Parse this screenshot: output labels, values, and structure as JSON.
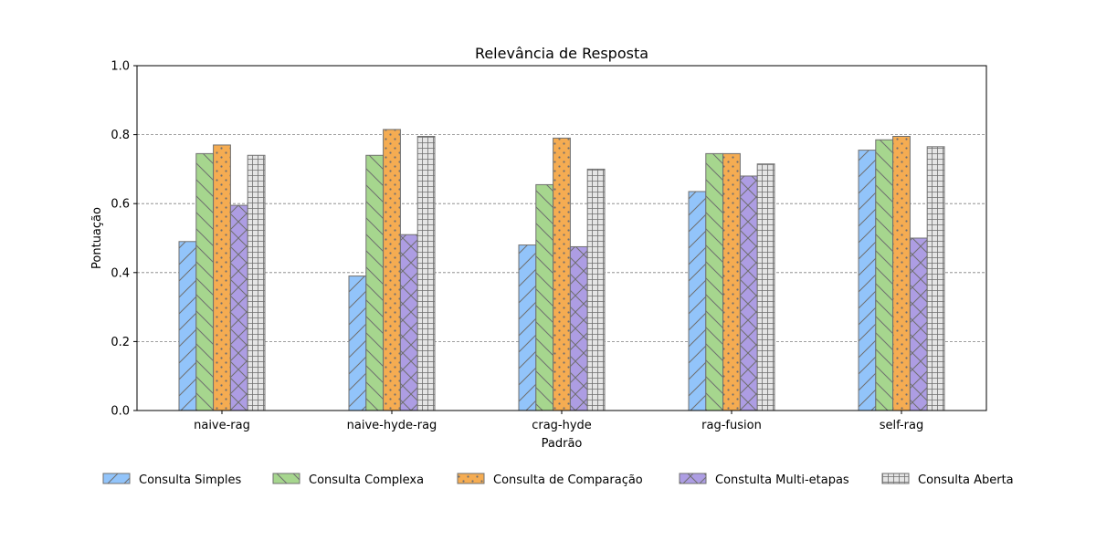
{
  "chart_data": {
    "type": "bar",
    "title": "Relevância de Resposta",
    "xlabel": "Padrão",
    "ylabel": "Pontuação",
    "ylim": [
      0,
      1.0
    ],
    "yticks": [
      "0.0",
      "0.2",
      "0.4",
      "0.6",
      "0.8",
      "1.0"
    ],
    "grid": "horizontal dashed",
    "legend_position": "bottom",
    "categories": [
      "naive-rag",
      "naive-hyde-rag",
      "crag-hyde",
      "rag-fusion",
      "self-rag"
    ],
    "series": [
      {
        "name": "Consulta Simples",
        "color": "#92c4fa",
        "pattern": "diagonal",
        "values": [
          0.49,
          0.39,
          0.48,
          0.635,
          0.755
        ]
      },
      {
        "name": "Consulta Complexa",
        "color": "#a6d68e",
        "pattern": "backdiagonal",
        "values": [
          0.745,
          0.74,
          0.655,
          0.745,
          0.785
        ]
      },
      {
        "name": "Consulta de Comparação",
        "color": "#f5ac52",
        "pattern": "dots",
        "values": [
          0.77,
          0.815,
          0.79,
          0.745,
          0.795
        ]
      },
      {
        "name": "Constulta Multi-etapas",
        "color": "#ad9de3",
        "pattern": "crosshatch",
        "values": [
          0.595,
          0.51,
          0.475,
          0.68,
          0.5
        ]
      },
      {
        "name": "Consulta Aberta",
        "color": "#e5e5e5",
        "pattern": "grid",
        "values": [
          0.74,
          0.795,
          0.7,
          0.715,
          0.765
        ]
      }
    ]
  }
}
